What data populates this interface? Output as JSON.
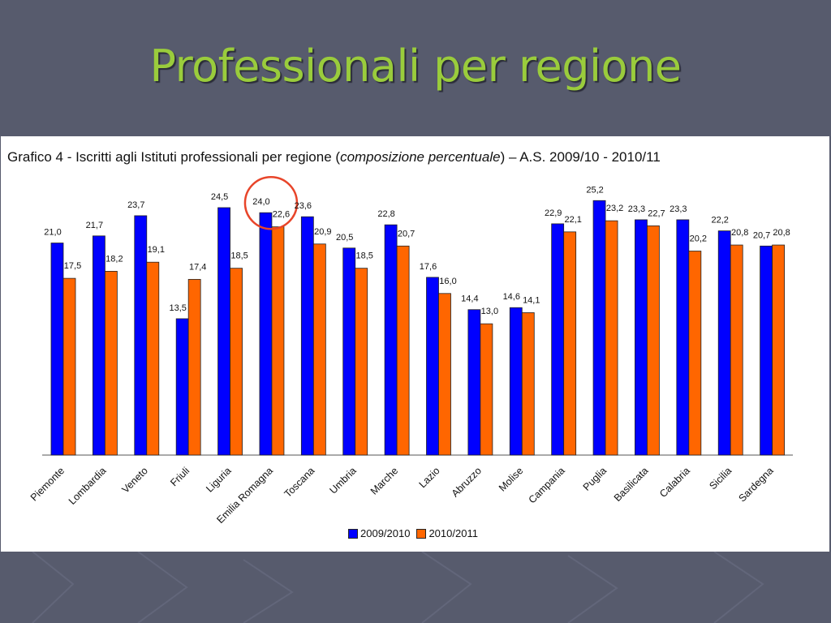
{
  "slide": {
    "title": "Professionali per regione"
  },
  "chart_data": {
    "type": "bar",
    "title_prefix": "Grafico 4 - Iscritti agli Istituti professionali per regione (",
    "title_italic": "composizione percentuale",
    "title_suffix": ") – A.S. 2009/10 - 2010/11",
    "categories": [
      "Piemonte",
      "Lombardia",
      "Veneto",
      "Friuli",
      "Liguria",
      "Emilia Romagna",
      "Toscana",
      "Umbria",
      "Marche",
      "Lazio",
      "Abruzzo",
      "Molise",
      "Campania",
      "Puglia",
      "Basilicata",
      "Calabria",
      "Sicilia",
      "Sardegna"
    ],
    "series": [
      {
        "name": "2009/2010",
        "color": "#0000ff",
        "values": [
          21.0,
          21.7,
          23.7,
          13.5,
          24.5,
          24.0,
          23.6,
          20.5,
          22.8,
          17.6,
          14.4,
          14.6,
          22.9,
          25.2,
          23.3,
          23.3,
          22.2,
          20.7
        ],
        "labels": [
          "21,0",
          "21,7",
          "23,7",
          "13,5",
          "24,5",
          "24,0",
          "23,6",
          "20,5",
          "22,8",
          "17,6",
          "14,4",
          "14,6",
          "22,9",
          "25,2",
          "23,3",
          "23,3",
          "22,2",
          "20,7"
        ]
      },
      {
        "name": "2010/2011",
        "color": "#ff6600",
        "values": [
          17.5,
          18.2,
          19.1,
          17.4,
          18.5,
          22.6,
          20.9,
          18.5,
          20.7,
          16.0,
          13.0,
          14.1,
          22.1,
          23.2,
          22.7,
          20.2,
          20.8,
          20.8
        ],
        "labels": [
          "17,5",
          "18,2",
          "19,1",
          "17,4",
          "18,5",
          "22,6",
          "20,9",
          "18,5",
          "20,7",
          "16,0",
          "13,0",
          "14,1",
          "22,1",
          "23,2",
          "22,7",
          "20,2",
          "20,8",
          "20,8"
        ]
      }
    ],
    "ylim": [
      0,
      27
    ],
    "grid": false,
    "legend_position": "bottom",
    "highlight": {
      "category": "Emilia Romagna",
      "shape": "circle",
      "color": "#e8452a"
    }
  }
}
